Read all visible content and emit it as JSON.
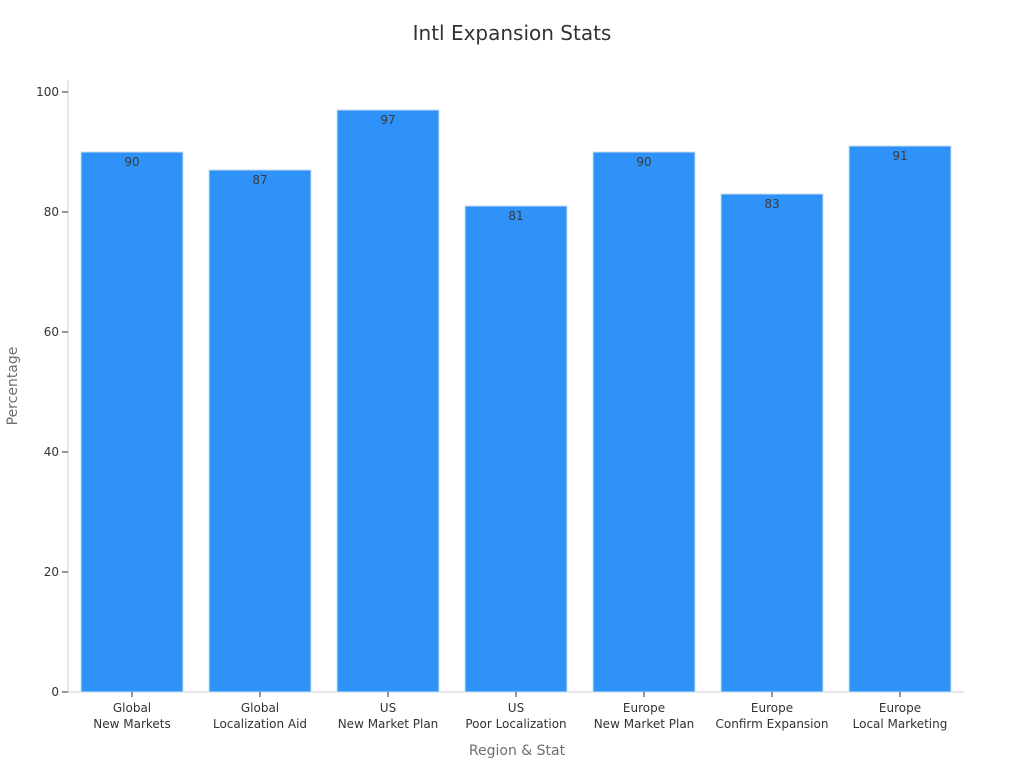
{
  "chart_data": {
    "type": "bar",
    "title": "Intl Expansion Stats",
    "xlabel": "Region & Stat",
    "ylabel": "Percentage",
    "categories": [
      [
        "Global",
        "New Markets"
      ],
      [
        "Global",
        "Localization Aid"
      ],
      [
        "US",
        "New Market Plan"
      ],
      [
        "US",
        "Poor Localization"
      ],
      [
        "Europe",
        "New Market Plan"
      ],
      [
        "Europe",
        "Confirm Expansion"
      ],
      [
        "Europe",
        "Local Marketing"
      ]
    ],
    "values": [
      90,
      87,
      97,
      81,
      90,
      83,
      91
    ],
    "ylim": [
      0,
      100
    ],
    "yticks": [
      0,
      20,
      40,
      60,
      80,
      100
    ],
    "grid": false,
    "legend": "none",
    "colors": {
      "bar": "#2f92f8",
      "bar_edge": "#c9dcf2",
      "axis": "#cccccc"
    }
  }
}
